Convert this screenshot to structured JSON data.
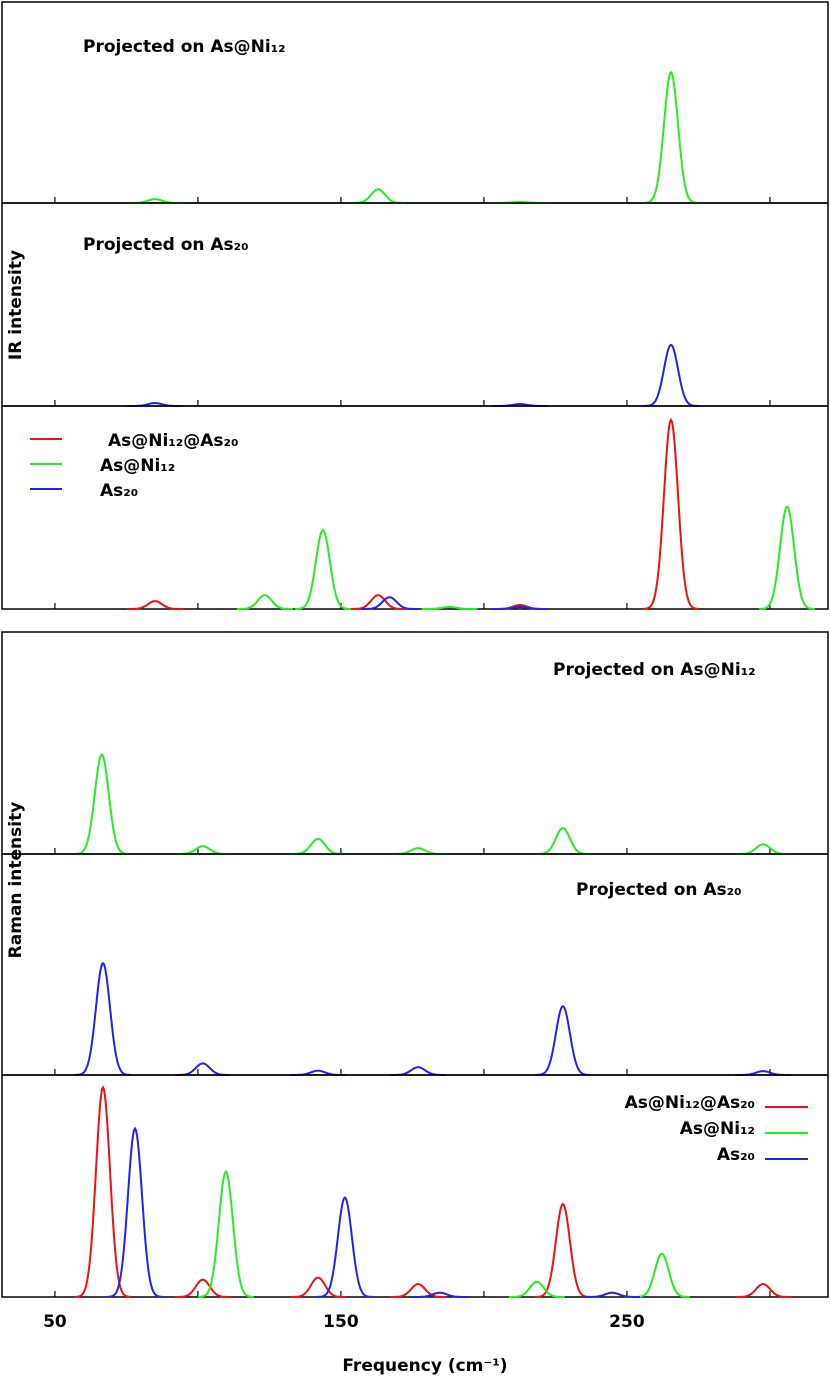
{
  "figure": {
    "ir_ylabel": "IR   intensity",
    "raman_ylabel": "Raman   intensity",
    "xlabel": "Frequency  (cm⁻¹)"
  },
  "chart_data": [
    {
      "type": "spectrum",
      "annotation": "Projected  on  As@Ni₁₂",
      "ylim": [
        0,
        100
      ],
      "series": [
        {
          "name": "As@Ni₁₂",
          "color": "#22ee22",
          "x": [
            85,
            163,
            212.6,
            265.4
          ],
          "values": [
            2,
            7,
            0.5,
            67
          ]
        }
      ]
    },
    {
      "type": "spectrum",
      "annotation": "Projected  on  As₂₀",
      "ylim": [
        0,
        100
      ],
      "series": [
        {
          "name": "As₂₀",
          "color": "#2222ee",
          "x": [
            85,
            212.6,
            265.4
          ],
          "values": [
            1.5,
            1,
            31
          ]
        }
      ]
    },
    {
      "type": "spectrum",
      "legend": "upper left",
      "ylim": [
        0,
        100
      ],
      "series": [
        {
          "name": "As@Ni₁₂@As₂₀",
          "color": "#ee1111",
          "x": [
            85,
            163,
            212.6,
            265.4
          ],
          "values": [
            4,
            7,
            2,
            96
          ]
        },
        {
          "name": "As@Ni₁₂",
          "color": "#22ee22",
          "x": [
            123.4,
            143.7,
            188,
            306
          ],
          "values": [
            7,
            40,
            1,
            52
          ]
        },
        {
          "name": "As₂₀",
          "color": "#2222ee",
          "x": [
            167,
            212.6
          ],
          "values": [
            6,
            1
          ]
        }
      ]
    },
    {
      "type": "spectrum",
      "annotation": "Projected  on  As@Ni₁₂",
      "ylim": [
        0,
        100
      ],
      "series": [
        {
          "name": "As@Ni₁₂",
          "color": "#22ee22",
          "x": [
            66.4,
            101.7,
            142,
            177,
            227.6,
            297.6
          ],
          "values": [
            46,
            3.6,
            7,
            2.7,
            12,
            4.5
          ]
        }
      ]
    },
    {
      "type": "spectrum",
      "annotation": "Projected  on  As₂₀",
      "ylim": [
        0,
        100
      ],
      "series": [
        {
          "name": "As₂₀",
          "color": "#2222ee",
          "x": [
            66.8,
            101.7,
            142,
            177,
            227.6,
            297.6
          ],
          "values": [
            52,
            5.4,
            2,
            3.6,
            32,
            1.8
          ]
        }
      ]
    },
    {
      "type": "spectrum",
      "legend": "upper right",
      "ylim": [
        0,
        100
      ],
      "xlim": [
        31.5,
        320.3
      ],
      "xticks": [
        50,
        150,
        250
      ],
      "xminorticks": [
        100,
        200,
        300
      ],
      "series": [
        {
          "name": "As@Ni₁₂@As₂₀",
          "color": "#ee1111",
          "x": [
            66.8,
            101.7,
            142,
            177,
            227.6,
            297.6
          ],
          "values": [
            97,
            8,
            9,
            6,
            43,
            6
          ]
        },
        {
          "name": "As@Ni₁₂",
          "color": "#22ee22",
          "x": [
            109.8,
            218.5,
            262.2
          ],
          "values": [
            58,
            7,
            20
          ]
        },
        {
          "name": "As₂₀",
          "color": "#2222ee",
          "x": [
            78,
            151.4,
            184.6,
            244.8
          ],
          "values": [
            78,
            46,
            2,
            2
          ]
        }
      ]
    }
  ]
}
